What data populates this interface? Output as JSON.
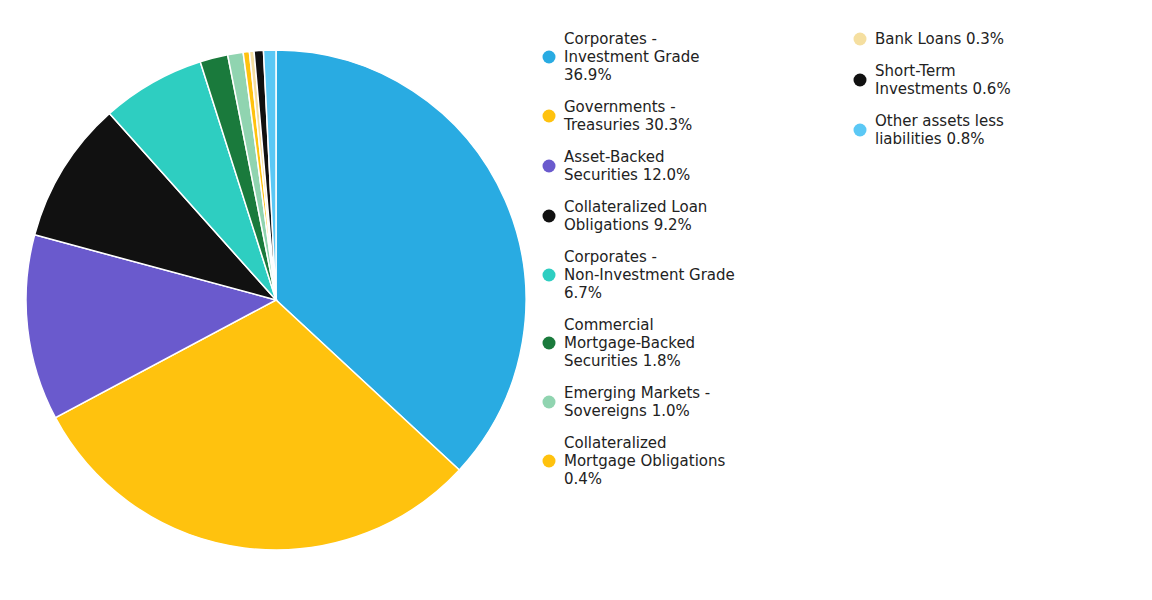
{
  "chart_data": {
    "type": "pie",
    "categories": [
      "Corporates -\nInvestment Grade\n36.9%",
      "Governments -\nTreasuries 30.3%",
      "Asset-Backed\nSecurities 12.0%",
      "Collateralized Loan\nObligations 9.2%",
      "Corporates -\nNon-Investment Grade\n6.7%",
      "Commercial\nMortgage-Backed\nSecurities 1.8%",
      "Emerging Markets -\nSovereigns 1.0%",
      "Collateralized\nMortgage Obligations\n0.4%",
      "Bank Loans 0.3%",
      "Short-Term\nInvestments 0.6%",
      "Other assets less\nliabilities 0.8%"
    ],
    "values": [
      36.9,
      30.3,
      12.0,
      9.2,
      6.7,
      1.8,
      1.0,
      0.4,
      0.3,
      0.6,
      0.8
    ],
    "colors": [
      "#29ABE2",
      "#FFC20E",
      "#6A5ACD",
      "#111111",
      "#2ECEC1",
      "#1A7A3C",
      "#90D4B0",
      "#FFC20E",
      "#F5DFA0",
      "#111111",
      "#5BC8F5"
    ],
    "legend": "right"
  }
}
